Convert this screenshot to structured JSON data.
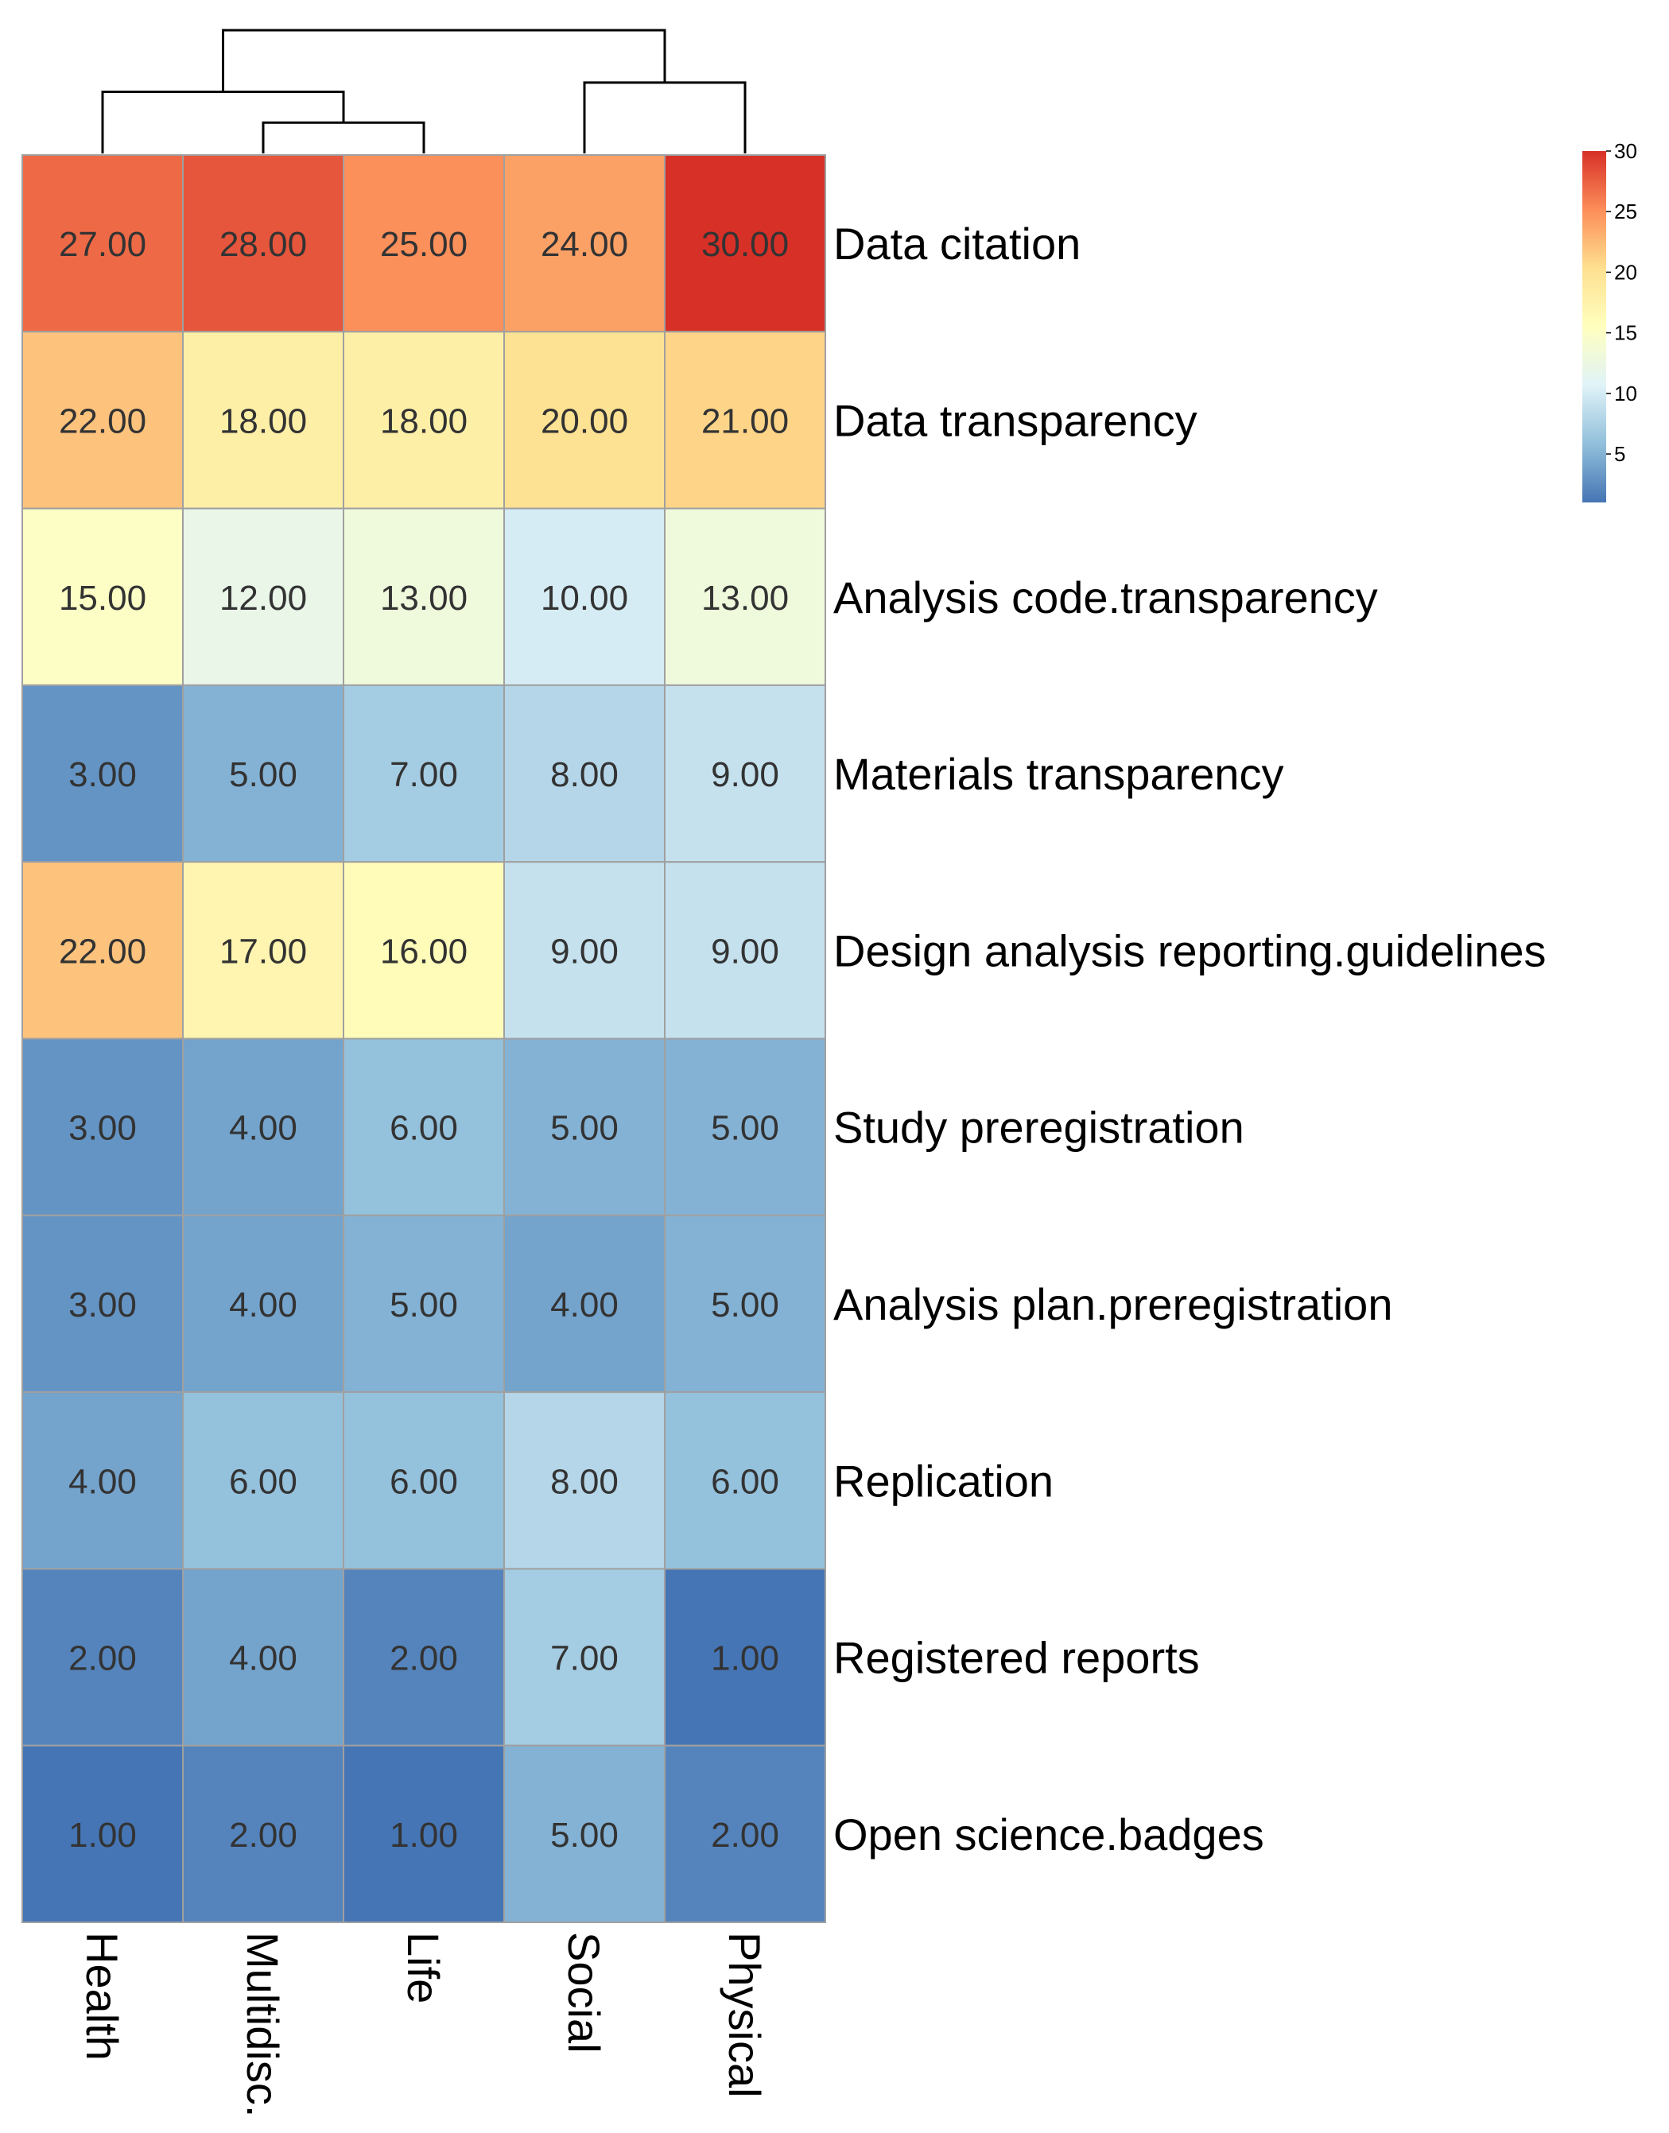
{
  "chart_data": {
    "type": "heatmap",
    "columns": [
      "Health",
      "Multidisc.",
      "Life",
      "Social",
      "Physical"
    ],
    "rows": [
      "Data citation",
      "Data transparency",
      "Analysis code.transparency",
      "Materials transparency",
      "Design analysis reporting.guidelines",
      "Study preregistration",
      "Analysis plan.preregistration",
      "Replication",
      "Registered reports",
      "Open science.badges"
    ],
    "values": [
      [
        27,
        28,
        25,
        24,
        30
      ],
      [
        22,
        18,
        18,
        20,
        21
      ],
      [
        15,
        12,
        13,
        10,
        13
      ],
      [
        3,
        5,
        7,
        8,
        9
      ],
      [
        22,
        17,
        16,
        9,
        9
      ],
      [
        3,
        4,
        6,
        5,
        5
      ],
      [
        3,
        4,
        5,
        4,
        5
      ],
      [
        4,
        6,
        6,
        8,
        6
      ],
      [
        2,
        4,
        2,
        7,
        1
      ],
      [
        1,
        2,
        1,
        5,
        2
      ]
    ],
    "cell_labels": [
      [
        "27.00",
        "28.00",
        "25.00",
        "24.00",
        "30.00"
      ],
      [
        "22.00",
        "18.00",
        "18.00",
        "20.00",
        "21.00"
      ],
      [
        "15.00",
        "12.00",
        "13.00",
        "10.00",
        "13.00"
      ],
      [
        "3.00",
        "5.00",
        "7.00",
        "8.00",
        "9.00"
      ],
      [
        "22.00",
        "17.00",
        "16.00",
        "9.00",
        "9.00"
      ],
      [
        "3.00",
        "4.00",
        "6.00",
        "5.00",
        "5.00"
      ],
      [
        "3.00",
        "4.00",
        "5.00",
        "4.00",
        "5.00"
      ],
      [
        "4.00",
        "6.00",
        "6.00",
        "8.00",
        "6.00"
      ],
      [
        "2.00",
        "4.00",
        "2.00",
        "7.00",
        "1.00"
      ],
      [
        "1.00",
        "2.00",
        "1.00",
        "5.00",
        "2.00"
      ]
    ],
    "color_range": [
      1,
      30
    ],
    "color_scale": [
      "#4575b4",
      "#91bfdb",
      "#e0f3f8",
      "#ffffbf",
      "#fee090",
      "#fc8d59",
      "#d73027"
    ],
    "legend": {
      "ticks": [
        {
          "value": 5,
          "label": "5"
        },
        {
          "value": 10,
          "label": "10"
        },
        {
          "value": 15,
          "label": "15"
        },
        {
          "value": 20,
          "label": "20"
        },
        {
          "value": 25,
          "label": "25"
        },
        {
          "value": 30,
          "label": "30"
        }
      ],
      "placement": "top-right"
    },
    "column_dendrogram": {
      "order": [
        "Health",
        "Multidisc.",
        "Life",
        "Social",
        "Physical"
      ],
      "merges": [
        {
          "left": "Multidisc.",
          "right": "Life",
          "height": 1
        },
        {
          "left": "Health",
          "right": "Multidisc.+Life",
          "height": 2
        },
        {
          "left": "Social",
          "right": "Physical",
          "height": 2.3
        },
        {
          "left": "Health+Multidisc.+Life",
          "right": "Social+Physical",
          "height": 4
        }
      ]
    }
  }
}
